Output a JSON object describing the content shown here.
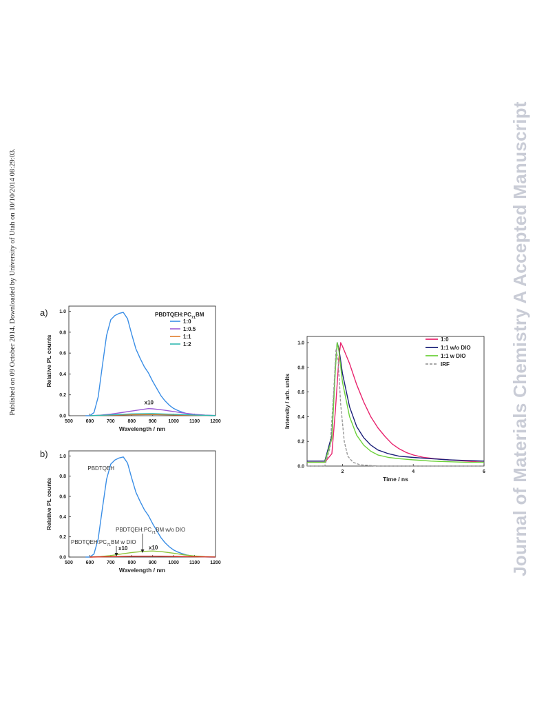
{
  "side_text_left": "Published on 09 October 2014. Downloaded by University of Utah on 10/10/2014 08:29:03.",
  "side_text_right": "Journal of Materials Chemistry A Accepted Manuscript",
  "chart_data": [
    {
      "id": "a",
      "type": "line",
      "panel_label": "a)",
      "xlabel": "Wavelength / nm",
      "ylabel": "Relative PL counts",
      "xlim": [
        500,
        1200
      ],
      "ylim": [
        0,
        1.05
      ],
      "x_ticks": [
        "500",
        "600",
        "700",
        "800",
        "900",
        "1000",
        "1100",
        "1200"
      ],
      "y_ticks": [
        "0.0",
        "0.2",
        "0.4",
        "0.6",
        "0.8",
        "1.0"
      ],
      "legend_title": "PBDTQEH:PC71BM",
      "legend_title_parts": {
        "pre": "PBDTQEH:PC",
        "sub": "71",
        "post": "BM"
      },
      "legend_placement": "top-right",
      "annotations": [
        {
          "text": "x10",
          "x": 880,
          "y": 0.11
        }
      ],
      "series": [
        {
          "name": "1:0",
          "color": "#3a8ee6",
          "x": [
            580,
            600,
            620,
            640,
            660,
            680,
            700,
            720,
            740,
            760,
            780,
            800,
            820,
            840,
            860,
            880,
            900,
            920,
            940,
            960,
            980,
            1000,
            1020,
            1040,
            1060,
            1080,
            1100,
            1120,
            1140,
            1160,
            1180,
            1200
          ],
          "y": [
            0.0,
            0.0,
            0.03,
            0.18,
            0.48,
            0.77,
            0.92,
            0.96,
            0.98,
            0.99,
            0.93,
            0.78,
            0.64,
            0.55,
            0.47,
            0.41,
            0.33,
            0.26,
            0.19,
            0.14,
            0.1,
            0.07,
            0.05,
            0.035,
            0.022,
            0.014,
            0.008,
            0.004,
            0.002,
            0.001,
            0.0,
            0.0
          ]
        },
        {
          "name": "1:0.5",
          "color": "#9b59d6",
          "x": [
            600,
            650,
            700,
            750,
            800,
            850,
            880,
            900,
            950,
            1000,
            1050,
            1100,
            1150,
            1200
          ],
          "y": [
            0.0,
            0.005,
            0.015,
            0.03,
            0.045,
            0.06,
            0.068,
            0.066,
            0.055,
            0.04,
            0.025,
            0.013,
            0.006,
            0.002
          ]
        },
        {
          "name": "1:1",
          "color": "#e07b2a",
          "x": [
            600,
            700,
            800,
            900,
            1000,
            1100,
            1200
          ],
          "y": [
            0.0,
            0.005,
            0.01,
            0.012,
            0.008,
            0.004,
            0.001
          ]
        },
        {
          "name": "1:2",
          "color": "#2fb8b0",
          "x": [
            600,
            700,
            800,
            900,
            1000,
            1100,
            1200
          ],
          "y": [
            0.0,
            0.008,
            0.018,
            0.02,
            0.014,
            0.006,
            0.002
          ]
        }
      ]
    },
    {
      "id": "b",
      "type": "line",
      "panel_label": "b)",
      "xlabel": "Wavelength / nm",
      "ylabel": "Relative PL counts",
      "xlim": [
        500,
        1200
      ],
      "ylim": [
        0,
        1.05
      ],
      "x_ticks": [
        "500",
        "600",
        "700",
        "800",
        "900",
        "1000",
        "1100",
        "1200"
      ],
      "y_ticks": [
        "0.0",
        "0.2",
        "0.4",
        "0.6",
        "0.8",
        "1.0"
      ],
      "annotations": [
        {
          "text": "PBDTQEH",
          "x": 590,
          "y": 0.86
        },
        {
          "text_parts": {
            "pre": "PBDTQEH:PC",
            "sub": "71",
            "post": "BM w/o DIO"
          },
          "x": 750,
          "y": 0.22
        },
        {
          "text_parts": {
            "pre": "PBDTQEH:PC",
            "sub": "71",
            "post": "BM w DIO"
          },
          "x": 530,
          "y": 0.12
        },
        {
          "text": "x10",
          "x": 735,
          "y": 0.085
        },
        {
          "text": "x10",
          "x": 890,
          "y": 0.085
        }
      ],
      "series": [
        {
          "name": "PBDTQEH",
          "color": "#3a8ee6",
          "x": [
            580,
            600,
            620,
            640,
            660,
            680,
            700,
            720,
            740,
            760,
            780,
            800,
            820,
            840,
            860,
            880,
            900,
            920,
            940,
            960,
            980,
            1000,
            1020,
            1040,
            1060,
            1080,
            1100,
            1120,
            1140,
            1160,
            1180,
            1200
          ],
          "y": [
            0.0,
            0.0,
            0.03,
            0.18,
            0.48,
            0.77,
            0.92,
            0.96,
            0.98,
            0.99,
            0.93,
            0.78,
            0.64,
            0.55,
            0.47,
            0.41,
            0.33,
            0.26,
            0.19,
            0.14,
            0.1,
            0.07,
            0.05,
            0.035,
            0.022,
            0.014,
            0.008,
            0.004,
            0.002,
            0.001,
            0.0,
            0.0
          ]
        },
        {
          "name": "PBDTQEH:PC71BM w/o DIO",
          "color": "#8fc43a",
          "x": [
            600,
            650,
            700,
            750,
            800,
            850,
            900,
            950,
            1000,
            1050,
            1100,
            1150,
            1200
          ],
          "y": [
            0.0,
            0.005,
            0.015,
            0.03,
            0.045,
            0.055,
            0.06,
            0.052,
            0.038,
            0.022,
            0.011,
            0.004,
            0.001
          ]
        },
        {
          "name": "PBDTQEH:PC71BM w DIO",
          "color": "#d9332b",
          "x": [
            600,
            700,
            800,
            900,
            1000,
            1100,
            1200
          ],
          "y": [
            0.0,
            0.004,
            0.008,
            0.009,
            0.006,
            0.003,
            0.001
          ]
        }
      ]
    },
    {
      "id": "c",
      "type": "line",
      "xlabel": "Time / ns",
      "ylabel": "Intensity / arb. units",
      "xlim": [
        1,
        6
      ],
      "ylim": [
        0,
        1.05
      ],
      "x_ticks": [
        "2",
        "4",
        "6"
      ],
      "x_tick_values": [
        2,
        4,
        6
      ],
      "y_ticks": [
        "0.0",
        "0.2",
        "0.4",
        "0.6",
        "0.8",
        "1.0"
      ],
      "legend_placement": "top-right",
      "series": [
        {
          "name": "1:0",
          "color": "#e8246e",
          "x": [
            1.0,
            1.5,
            1.7,
            1.8,
            1.9,
            1.95,
            2.0,
            2.2,
            2.4,
            2.6,
            2.8,
            3.0,
            3.2,
            3.4,
            3.6,
            3.8,
            4.0,
            4.3,
            4.6,
            5.0,
            5.5,
            6.0
          ],
          "y": [
            0.03,
            0.03,
            0.1,
            0.45,
            0.88,
            1.0,
            0.97,
            0.83,
            0.66,
            0.52,
            0.4,
            0.31,
            0.24,
            0.18,
            0.14,
            0.11,
            0.09,
            0.07,
            0.06,
            0.05,
            0.04,
            0.03
          ]
        },
        {
          "name": "1:1 w/o DIO",
          "color": "#1a1f78",
          "x": [
            1.0,
            1.5,
            1.7,
            1.8,
            1.85,
            1.9,
            2.0,
            2.2,
            2.4,
            2.6,
            2.8,
            3.0,
            3.3,
            3.6,
            4.0,
            4.5,
            5.0,
            5.5,
            6.0
          ],
          "y": [
            0.04,
            0.04,
            0.25,
            0.8,
            1.0,
            0.95,
            0.75,
            0.48,
            0.32,
            0.23,
            0.17,
            0.13,
            0.1,
            0.08,
            0.07,
            0.06,
            0.05,
            0.045,
            0.04
          ]
        },
        {
          "name": "1:1 w DIO",
          "color": "#6cd13a",
          "x": [
            1.0,
            1.5,
            1.7,
            1.8,
            1.85,
            1.9,
            2.0,
            2.2,
            2.4,
            2.6,
            2.8,
            3.0,
            3.3,
            3.6,
            4.0,
            4.5,
            5.0,
            5.5,
            6.0
          ],
          "y": [
            0.03,
            0.03,
            0.22,
            0.78,
            1.0,
            0.93,
            0.68,
            0.4,
            0.25,
            0.17,
            0.12,
            0.09,
            0.07,
            0.06,
            0.05,
            0.04,
            0.035,
            0.03,
            0.03
          ]
        },
        {
          "name": "IRF",
          "color": "#999999",
          "dashed": true,
          "x": [
            1.0,
            1.5,
            1.65,
            1.75,
            1.82,
            1.88,
            1.95,
            2.05,
            2.15,
            2.3,
            2.5,
            3.0,
            4.0,
            5.0,
            6.0
          ],
          "y": [
            0.0,
            0.0,
            0.15,
            0.6,
            0.95,
            0.85,
            0.5,
            0.2,
            0.08,
            0.03,
            0.01,
            0.0,
            0.0,
            0.0,
            0.0
          ]
        }
      ]
    }
  ]
}
